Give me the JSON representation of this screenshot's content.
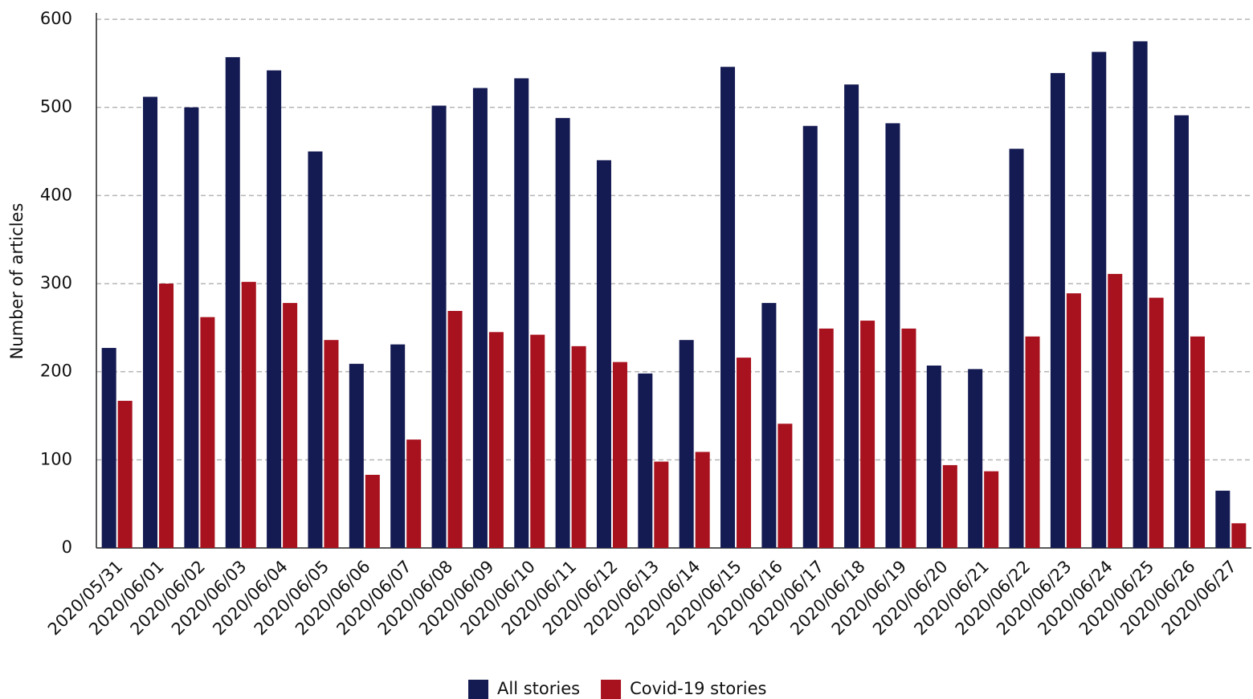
{
  "chart_data": {
    "type": "bar",
    "ylabel": "Number of articles",
    "categories": [
      "2020/05/31",
      "2020/06/01",
      "2020/06/02",
      "2020/06/03",
      "2020/06/04",
      "2020/06/05",
      "2020/06/06",
      "2020/06/07",
      "2020/06/08",
      "2020/06/09",
      "2020/06/10",
      "2020/06/11",
      "2020/06/12",
      "2020/06/13",
      "2020/06/14",
      "2020/06/15",
      "2020/06/16",
      "2020/06/17",
      "2020/06/18",
      "2020/06/19",
      "2020/06/20",
      "2020/06/21",
      "2020/06/22",
      "2020/06/23",
      "2020/06/24",
      "2020/06/25",
      "2020/06/26",
      "2020/06/27"
    ],
    "series": [
      {
        "name": "All stories",
        "color": "#141a52",
        "values": [
          227,
          512,
          500,
          557,
          542,
          450,
          209,
          231,
          502,
          522,
          533,
          488,
          440,
          198,
          236,
          546,
          278,
          479,
          526,
          482,
          207,
          203,
          453,
          539,
          563,
          575,
          491,
          65
        ]
      },
      {
        "name": "Covid-19 stories",
        "color": "#a8111e",
        "values": [
          167,
          300,
          262,
          302,
          278,
          236,
          83,
          123,
          269,
          245,
          242,
          229,
          211,
          98,
          109,
          216,
          141,
          249,
          258,
          249,
          94,
          87,
          240,
          289,
          311,
          284,
          240,
          28
        ]
      }
    ],
    "ylim": [
      0,
      600
    ],
    "yticks": [
      0,
      100,
      200,
      300,
      400,
      500,
      600
    ],
    "grid": true,
    "legend": "bottom"
  }
}
